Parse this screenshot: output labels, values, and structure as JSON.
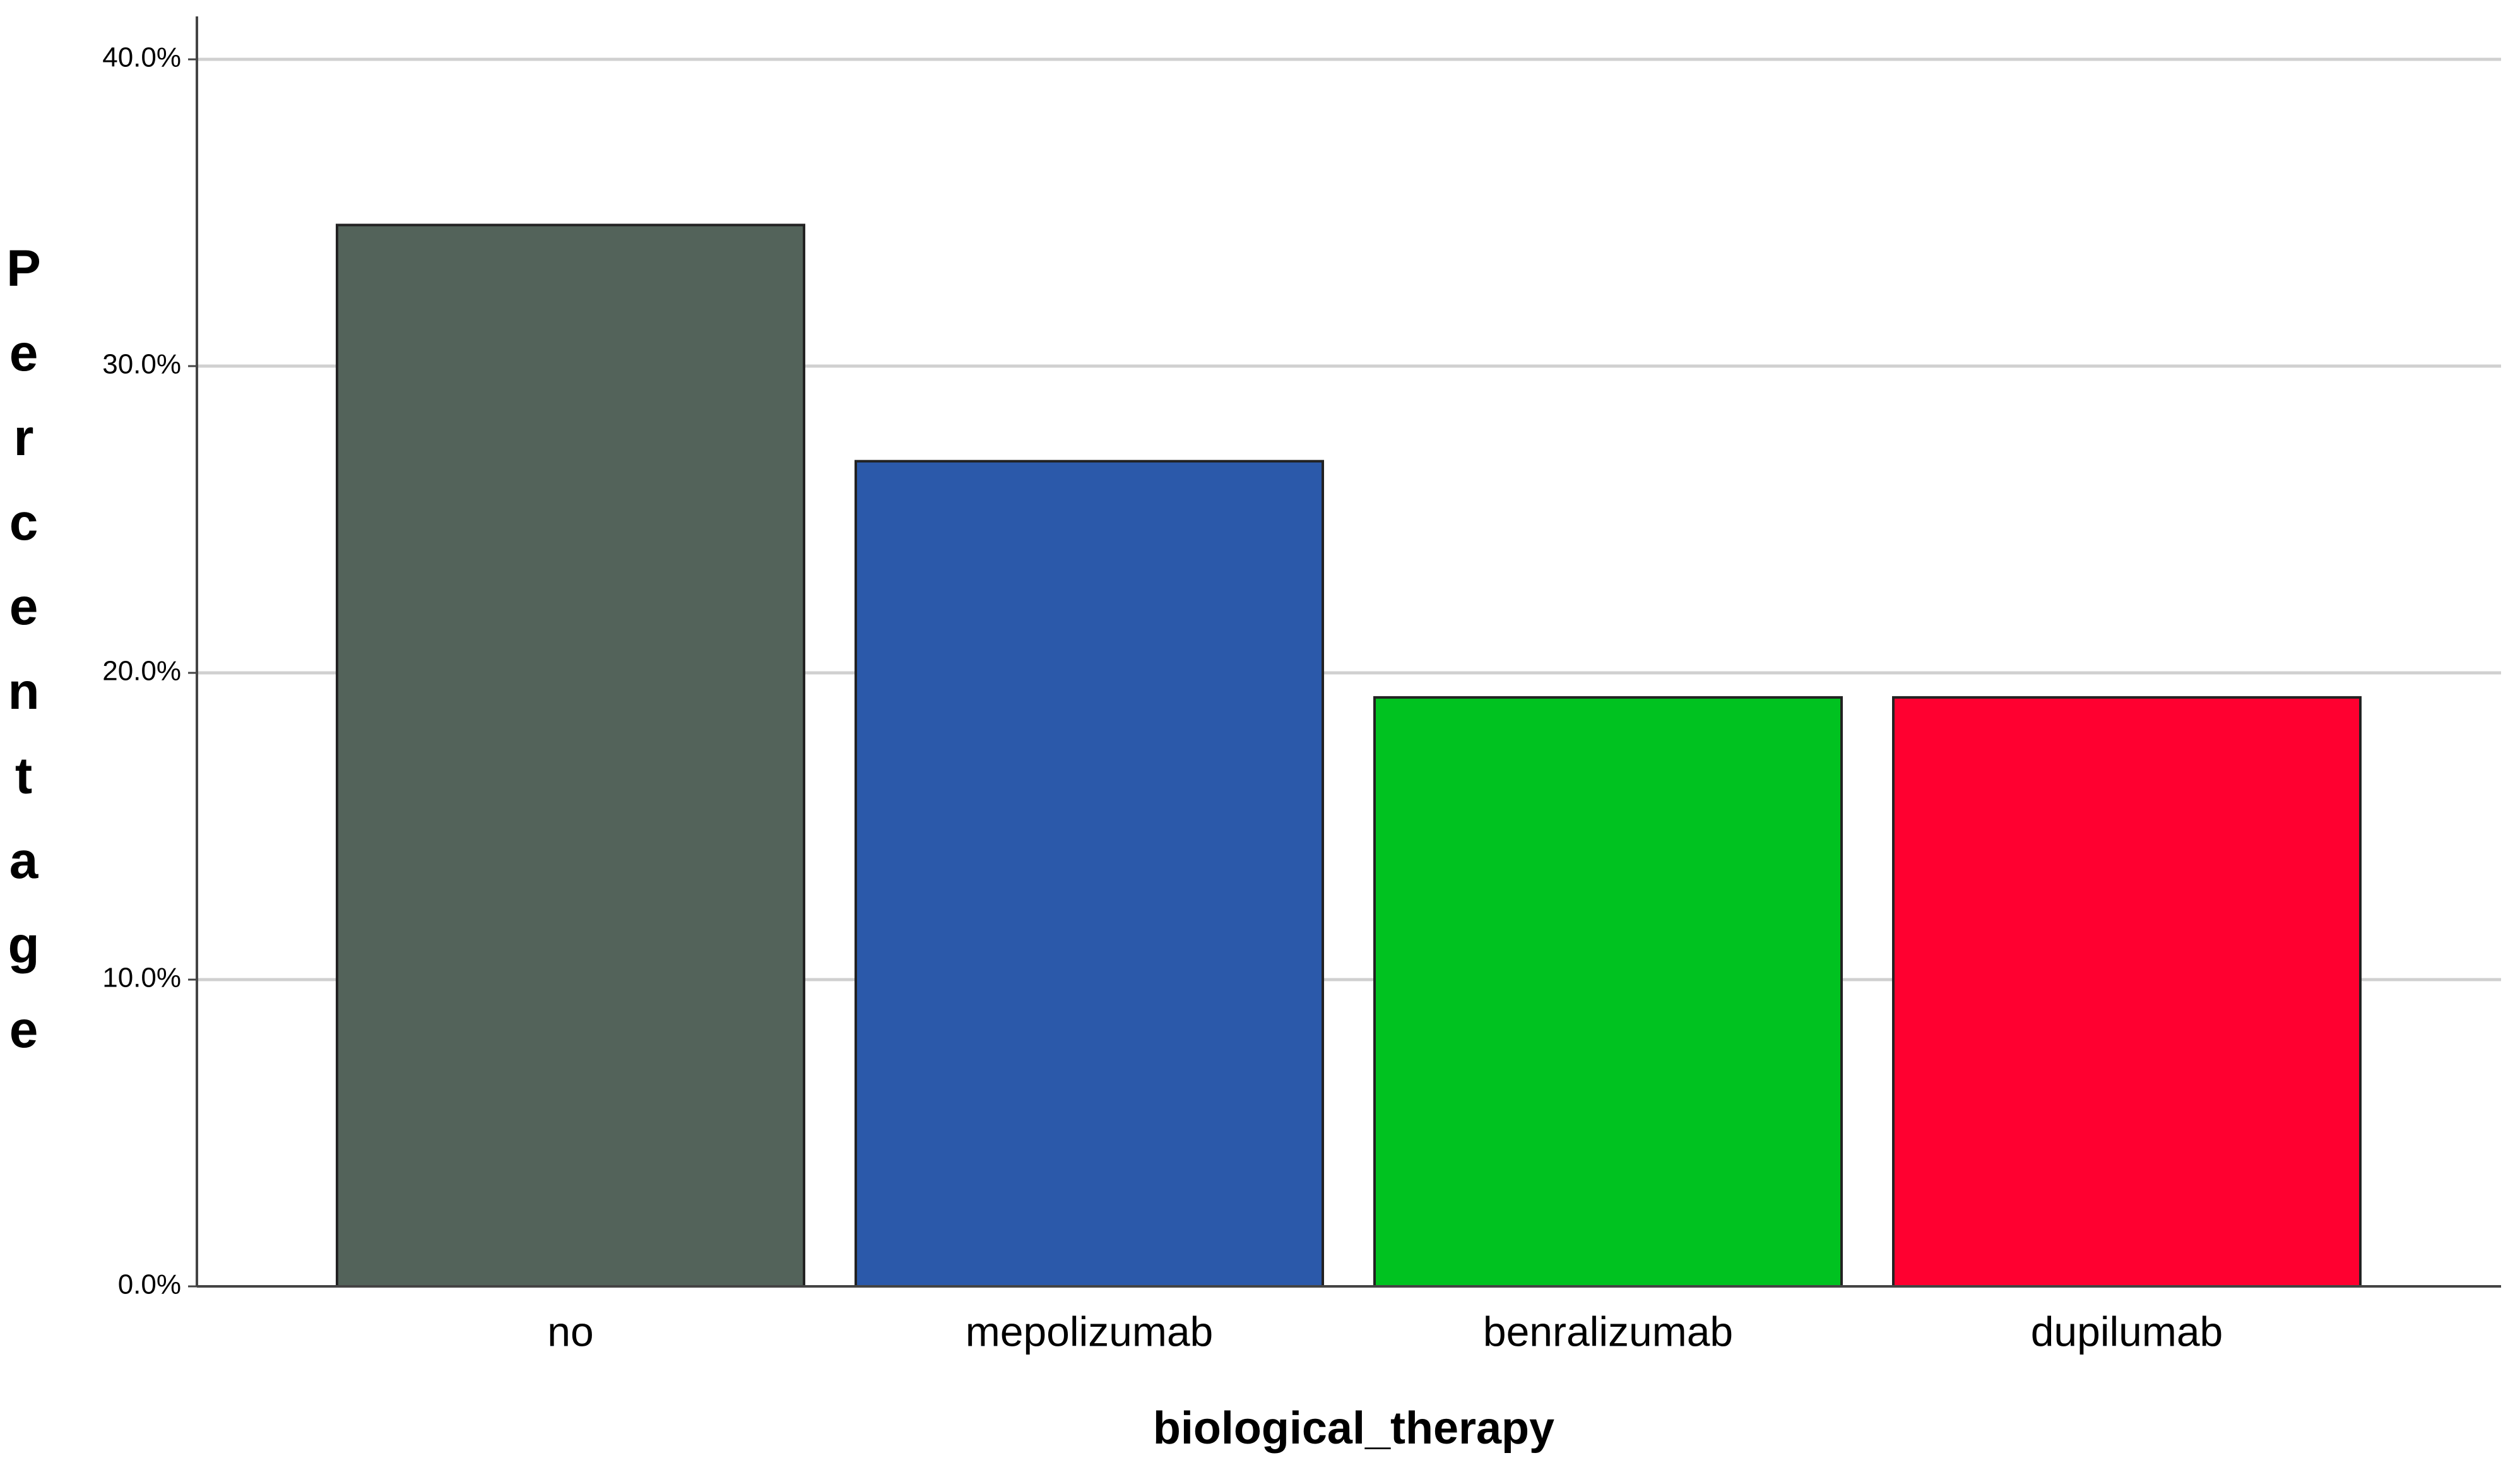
{
  "chart_data": {
    "type": "bar",
    "x_label": "biological_therapy",
    "y_label": "Percentage",
    "categories": [
      "no",
      "mepolizumab",
      "benralizumab",
      "dupilumab"
    ],
    "values": [
      34.6,
      26.9,
      19.2,
      19.2
    ],
    "colors": [
      "#53635a",
      "#2b59aa",
      "#00c220",
      "#ff0030"
    ],
    "ylim": [
      0,
      41.4
    ],
    "yticks": [
      {
        "value": 0,
        "label": "0.0%"
      },
      {
        "value": 10,
        "label": "10.0%"
      },
      {
        "value": 20,
        "label": "20.0%"
      },
      {
        "value": 30,
        "label": "30.0%"
      },
      {
        "value": 40,
        "label": "40.0%"
      }
    ],
    "grid": true
  }
}
